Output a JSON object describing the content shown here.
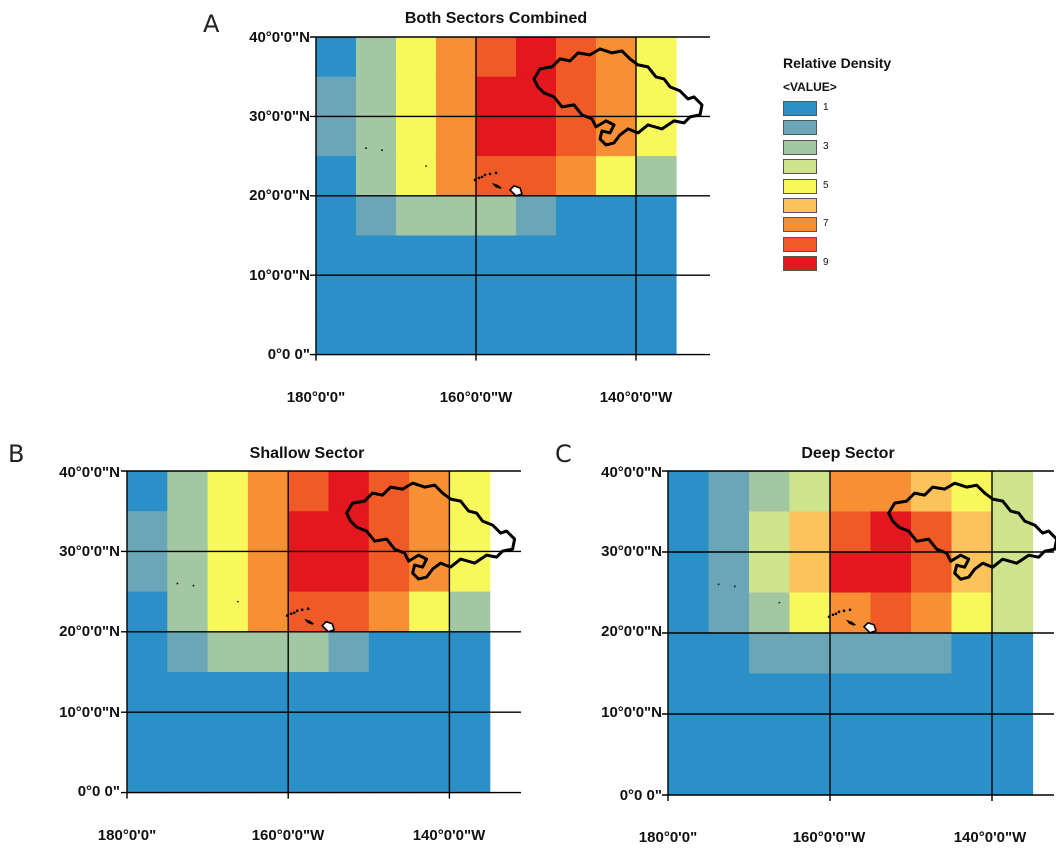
{
  "palette": {
    "1": "#2b8fc8",
    "2": "#6aa6b8",
    "3": "#a3c6a3",
    "4": "#cde38c",
    "5": "#f8f75c",
    "6": "#fbc35a",
    "7": "#f78f35",
    "8": "#ef5a26",
    "9": "#e3171e"
  },
  "legend": {
    "title": "Relative Density",
    "subtitle": "<VALUE>",
    "items": [
      {
        "value": 1,
        "label": "1"
      },
      {
        "value": 2,
        "label": ""
      },
      {
        "value": 3,
        "label": "3"
      },
      {
        "value": 4,
        "label": ""
      },
      {
        "value": 5,
        "label": "5"
      },
      {
        "value": 6,
        "label": ""
      },
      {
        "value": 7,
        "label": "7"
      },
      {
        "value": 8,
        "label": ""
      },
      {
        "value": 9,
        "label": "9"
      }
    ]
  },
  "panels": [
    {
      "letter": "A",
      "title": "Both Sectors Combined",
      "lat_labels": [
        "40°0'0\"N",
        "30°0'0\"N",
        "20°0'0\"N",
        "10°0'0\"N",
        "0°0 0\""
      ],
      "lon_labels": [
        "180°0'0\"",
        "160°0'0\"W",
        "140°0'0\"W"
      ],
      "grid_cols_lon": [
        -180,
        -175,
        -170,
        -165,
        -160,
        -155,
        -150,
        -145,
        -140,
        -135
      ],
      "grid_rows_lat": [
        40,
        35,
        30,
        25,
        20,
        15,
        10,
        5,
        0
      ],
      "density": [
        [
          1,
          3,
          5,
          7,
          8,
          9,
          8,
          7,
          5
        ],
        [
          2,
          3,
          5,
          7,
          9,
          9,
          8,
          7,
          5
        ],
        [
          2,
          3,
          5,
          7,
          9,
          9,
          8,
          7,
          5
        ],
        [
          1,
          3,
          5,
          7,
          8,
          8,
          7,
          5,
          3
        ],
        [
          1,
          2,
          3,
          3,
          3,
          2,
          1,
          1,
          1
        ],
        [
          1,
          1,
          1,
          1,
          1,
          1,
          1,
          1,
          1
        ],
        [
          1,
          1,
          1,
          1,
          1,
          1,
          1,
          1,
          1
        ],
        [
          1,
          1,
          1,
          1,
          1,
          1,
          1,
          1,
          1
        ]
      ]
    },
    {
      "letter": "B",
      "title": "Shallow Sector",
      "lat_labels": [
        "40°0'0\"N",
        "30°0'0\"N",
        "20°0'0\"N",
        "10°0'0\"N",
        "0°0 0\""
      ],
      "lon_labels": [
        "180°0'0\"",
        "160°0'0\"W",
        "140°0'0\"W"
      ],
      "grid_cols_lon": [
        -180,
        -175,
        -170,
        -165,
        -160,
        -155,
        -150,
        -145,
        -140,
        -135
      ],
      "grid_rows_lat": [
        40,
        35,
        30,
        25,
        20,
        15,
        10,
        5,
        0
      ],
      "density": [
        [
          1,
          3,
          5,
          7,
          8,
          9,
          8,
          7,
          5
        ],
        [
          2,
          3,
          5,
          7,
          9,
          9,
          8,
          7,
          5
        ],
        [
          2,
          3,
          5,
          7,
          9,
          9,
          8,
          7,
          5
        ],
        [
          1,
          3,
          5,
          7,
          8,
          8,
          7,
          5,
          3
        ],
        [
          1,
          2,
          3,
          3,
          3,
          2,
          1,
          1,
          1
        ],
        [
          1,
          1,
          1,
          1,
          1,
          1,
          1,
          1,
          1
        ],
        [
          1,
          1,
          1,
          1,
          1,
          1,
          1,
          1,
          1
        ],
        [
          1,
          1,
          1,
          1,
          1,
          1,
          1,
          1,
          1
        ]
      ]
    },
    {
      "letter": "C",
      "title": "Deep Sector",
      "lat_labels": [
        "40°0'0\"N",
        "30°0'0\"N",
        "20°0'0\"N",
        "10°0'0\"N",
        "0°0 0\""
      ],
      "lon_labels": [
        "180°0'0\"",
        "160°0'0\"W",
        "140°0'0\"W"
      ],
      "grid_cols_lon": [
        -180,
        -175,
        -170,
        -165,
        -160,
        -155,
        -150,
        -145,
        -140,
        -135
      ],
      "grid_rows_lat": [
        40,
        35,
        30,
        25,
        20,
        15,
        10,
        5,
        0
      ],
      "density": [
        [
          1,
          2,
          3,
          4,
          7,
          7,
          6,
          5,
          4
        ],
        [
          1,
          2,
          4,
          6,
          8,
          9,
          8,
          6,
          4
        ],
        [
          1,
          2,
          4,
          6,
          9,
          9,
          8,
          6,
          4
        ],
        [
          1,
          2,
          3,
          5,
          7,
          8,
          7,
          5,
          4
        ],
        [
          1,
          1,
          2,
          2,
          2,
          2,
          2,
          1,
          1
        ],
        [
          1,
          1,
          1,
          1,
          1,
          1,
          1,
          1,
          1
        ],
        [
          1,
          1,
          1,
          1,
          1,
          1,
          1,
          1,
          1
        ],
        [
          1,
          1,
          1,
          1,
          1,
          1,
          1,
          1,
          1
        ]
      ]
    }
  ]
}
